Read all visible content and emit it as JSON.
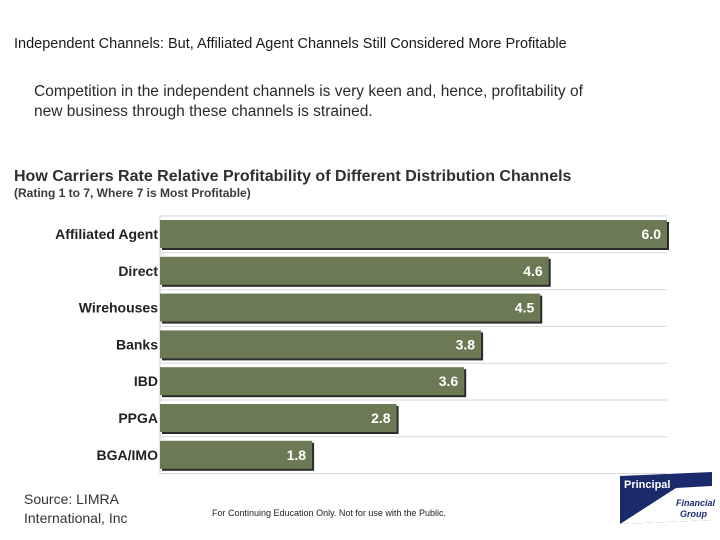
{
  "slide": {
    "title": "Independent Channels: But, Affiliated Agent Channels Still Considered More Profitable",
    "subtitle": "Competition in the independent channels is very keen and, hence, profitability of new business through these channels is strained.",
    "source_line1": "Source: LIMRA",
    "source_line2": "International, Inc",
    "disclaimer": "For Continuing Education Only.  Not for use with the Public."
  },
  "logo": {
    "word1": "Principal",
    "word2": "Financial",
    "word3": "Group",
    "color": "#1b2a6b"
  },
  "chart_data": {
    "type": "bar",
    "orientation": "horizontal",
    "title": "How Carriers Rate Relative Profitability of Different Distribution Channels",
    "subtitle": "(Rating 1 to 7, Where 7 is Most Profitable)",
    "categories": [
      "Affiliated Agent",
      "Direct",
      "Wirehouses",
      "Banks",
      "IBD",
      "PPGA",
      "BGA/IMO"
    ],
    "values": [
      6.0,
      4.6,
      4.5,
      3.8,
      3.6,
      2.8,
      1.8
    ],
    "value_labels": [
      "6.0",
      "4.6",
      "4.5",
      "3.8",
      "3.6",
      "2.8",
      "1.8"
    ],
    "xlim": [
      0,
      6.0
    ],
    "grid": "horizontal",
    "bar_color": "#6b7a55",
    "label_color": "#ffffff"
  }
}
